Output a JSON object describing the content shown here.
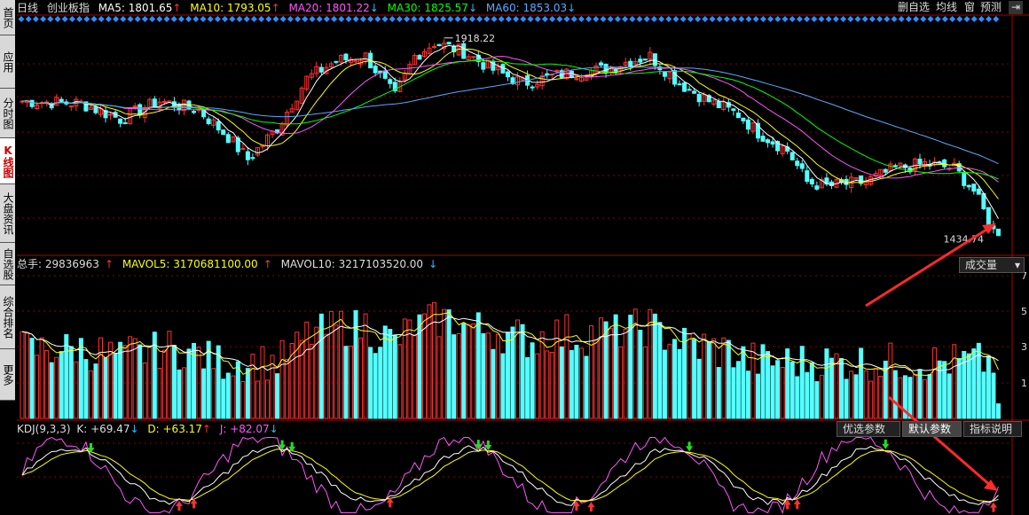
{
  "sidebar": {
    "tabs": [
      {
        "label": "首页",
        "active": false
      },
      {
        "label": "应用",
        "active": false,
        "icon": "back-icon"
      },
      {
        "label": "分时图",
        "active": false
      },
      {
        "label": "K线图",
        "active": true
      },
      {
        "label": "大盘资讯",
        "active": false
      },
      {
        "label": "自选股",
        "active": false
      },
      {
        "label": "综合排名",
        "active": false
      },
      {
        "label": "更多",
        "active": false
      }
    ]
  },
  "toolbar": {
    "period": "日线",
    "name": "创业板指",
    "buttons": [
      "删自选",
      "均线",
      "窗",
      "预测"
    ],
    "exit_icon": "exit-icon"
  },
  "price_header": [
    {
      "label": "MA5: 1801.65",
      "color": "#ffffff",
      "dir": "up"
    },
    {
      "label": "MA10: 1793.05",
      "color": "#ffff00",
      "dir": "up"
    },
    {
      "label": "MA20: 1801.22",
      "color": "#ff55ff",
      "dir": "down"
    },
    {
      "label": "MA30: 1825.57",
      "color": "#00ff00",
      "dir": "down"
    },
    {
      "label": "MA60: 1853.03",
      "color": "#55aaff",
      "dir": "down"
    }
  ],
  "volume_header": {
    "total_label": "总手: 29836963",
    "mavol5_label": "MAVOL5: 3170681100.00",
    "mavol10_label": "MAVOL10: 3217103520.00",
    "dropdown": "成交量"
  },
  "kdj_header": {
    "name": "KDJ(9,3,3)",
    "k_label": "K: +69.47",
    "d_label": "D: +63.17",
    "j_label": "J: +82.07",
    "buttons": [
      "优选参数",
      "默认参数",
      "指标说明"
    ],
    "selected_button": 1
  },
  "chart_data": {
    "type": "candlestick",
    "high_annotation": "1918.22",
    "low_annotation": "1434.74",
    "volume_axis_ticks": [
      "7",
      "5",
      "3",
      "1"
    ],
    "colors": {
      "up": "#ff3030",
      "down": "#54ffff",
      "ma5": "#ffffff",
      "ma10": "#ffff00",
      "ma20": "#ff55ff",
      "ma30": "#00ff00",
      "ma60": "#55aaff"
    },
    "ohlc": [],
    "ranges": {
      "price": [
        1420,
        1930
      ],
      "volume": [
        0,
        8
      ],
      "kdj": [
        -10,
        110
      ]
    }
  }
}
